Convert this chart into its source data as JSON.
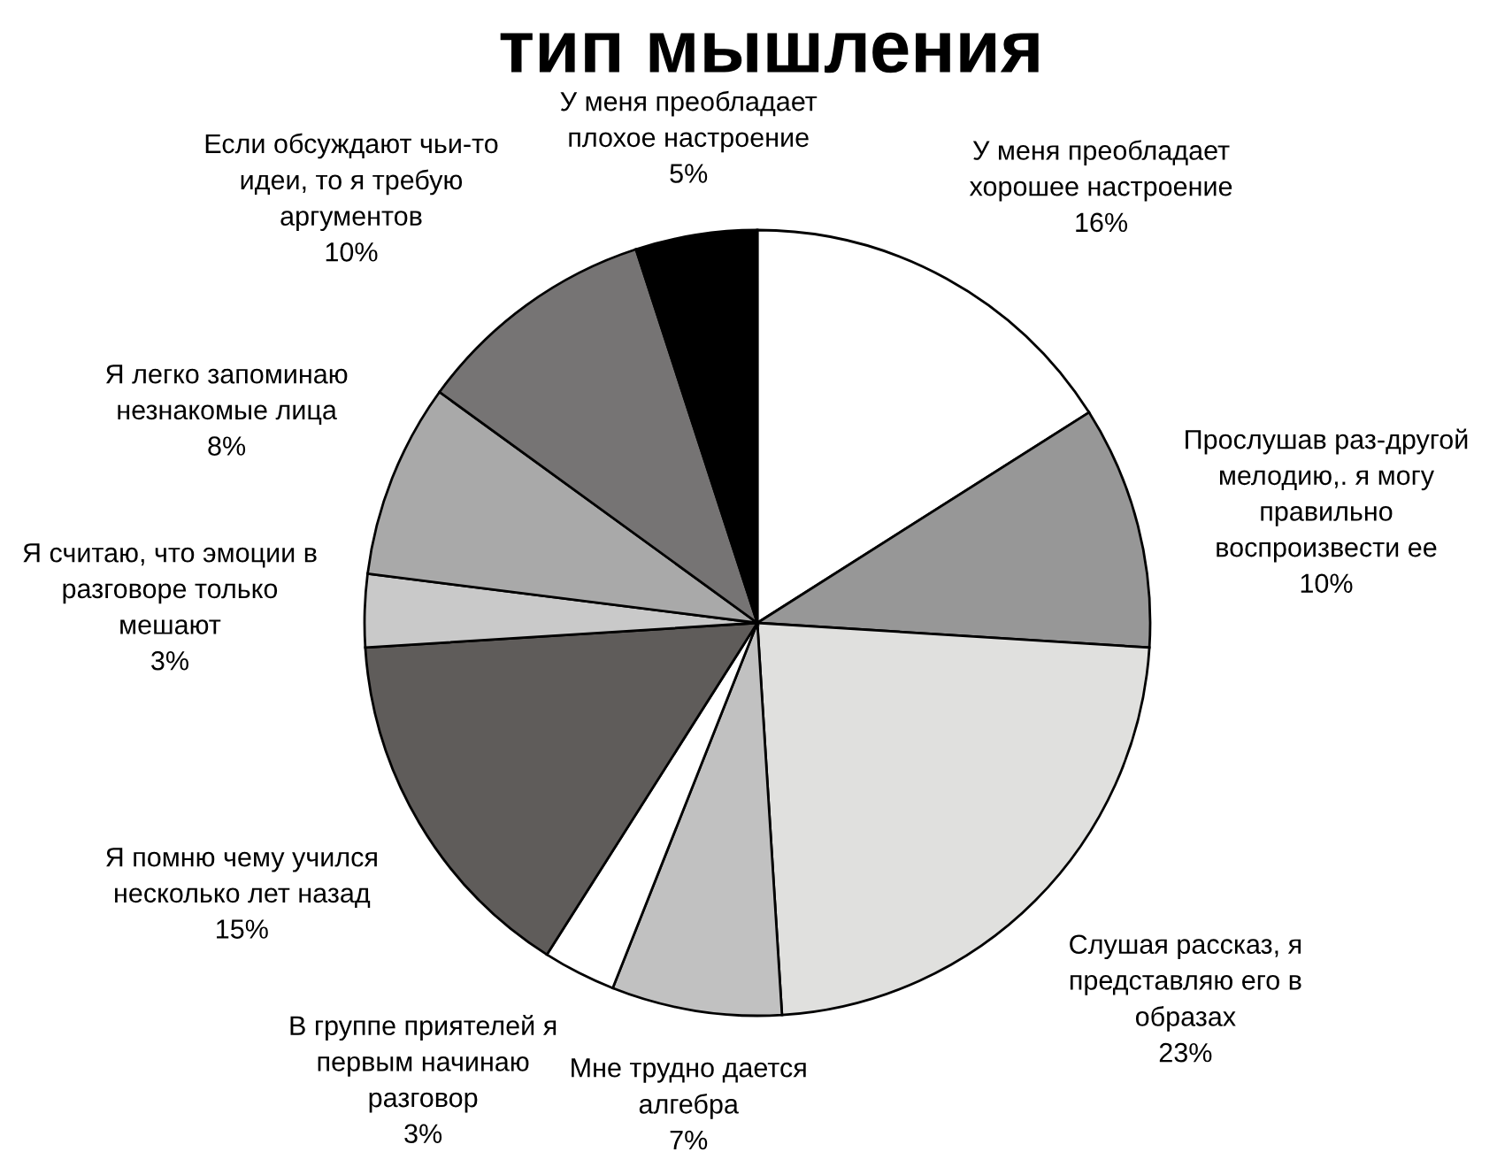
{
  "chart_data": {
    "type": "pie",
    "title": "тип мышления",
    "categories": [
      "У меня преобладает\nхорошее настроение",
      "Прослушав раз-другой\nмелодию,. я могу\nправильно\nвоспроизвести ее",
      "Слушая рассказ, я\nпредставляю его в\nобразах",
      "Мне трудно дается\nалгебра",
      "В группе приятелей я\nпервым начинаю\nразговор",
      "Я помню чему учился\nнесколько лет назад",
      "Я считаю, что эмоции в\nразговоре только\nмешают",
      "Я легко запоминаю\nнезнакомые лица",
      "Если обсуждают чьи-то\nидеи, то я требую\nаргументов",
      "У меня преобладает\nплохое настроение"
    ],
    "values": [
      16,
      10,
      23,
      7,
      3,
      15,
      3,
      8,
      10,
      5
    ],
    "value_labels": [
      "16%",
      "10%",
      "23%",
      "7%",
      "3%",
      "15%",
      "3%",
      "8%",
      "10%",
      "5%"
    ],
    "colors": [
      "#ffffff",
      "#979797",
      "#e0e0de",
      "#c1c1c1",
      "#ffffff",
      "#5f5c5a",
      "#c9c9c9",
      "#a9a9a9",
      "#767474",
      "#000000"
    ]
  }
}
